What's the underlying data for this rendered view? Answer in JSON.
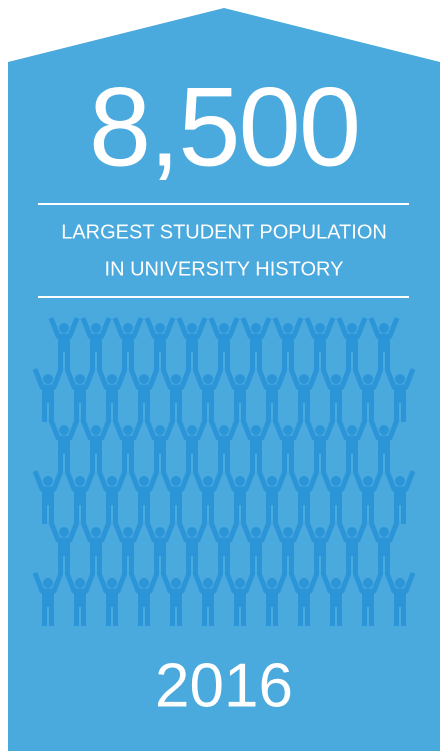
{
  "headline": "8,500",
  "label_lines": [
    "LARGEST STUDENT POPULATION",
    "IN UNIVERSITY HISTORY"
  ],
  "year": "2016"
}
